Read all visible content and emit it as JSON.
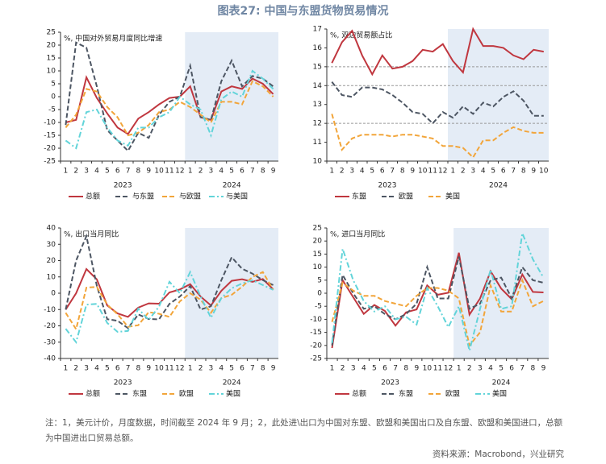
{
  "header": {
    "title": "图表27:  中国与东盟货物贸易情况"
  },
  "chart_data": [
    {
      "type": "line",
      "title": "%, 中国对外贸易月度同比增速",
      "categories": [
        "1",
        "2",
        "3",
        "4",
        "5",
        "6",
        "7",
        "8",
        "9",
        "10",
        "11",
        "12",
        "1",
        "2",
        "3",
        "4",
        "5",
        "6",
        "7",
        "8",
        "9"
      ],
      "year_labels": [
        "2023",
        "2024"
      ],
      "ylim": [
        -25,
        25
      ],
      "yticks": [
        -25,
        -20,
        -15,
        -10,
        -5,
        0,
        5,
        10,
        15,
        20,
        25
      ],
      "series": [
        {
          "name": "总额",
          "color": "#c0373f",
          "style": "solid",
          "values": [
            -10,
            -9,
            7.5,
            -0.5,
            -6.5,
            -12,
            -14.5,
            -8.5,
            -6,
            -3,
            -0.5,
            0,
            4,
            -8,
            -9,
            2,
            4,
            3,
            7,
            5,
            1
          ]
        },
        {
          "name": "与东盟",
          "color": "#4d5663",
          "style": "dashed",
          "values": [
            -11,
            21,
            19,
            4,
            -13,
            -17,
            -21,
            -14,
            -16,
            -7,
            -2,
            0,
            12,
            -8,
            -9,
            6,
            14,
            4,
            8,
            7,
            4
          ]
        },
        {
          "name": "与欧盟",
          "color": "#f2a53a",
          "style": "dashed",
          "values": [
            -12,
            -7,
            3,
            2,
            -4,
            -8,
            -15,
            -14,
            -11,
            -6,
            -5,
            -2,
            -4,
            -7,
            -10,
            -2,
            -2,
            -3,
            6,
            4,
            0
          ]
        },
        {
          "name": "与美国",
          "color": "#62d4d9",
          "style": "dashdot",
          "values": [
            -17,
            -20,
            -6,
            -5,
            -12,
            -17,
            -19,
            -12,
            -12,
            -8,
            -6,
            0,
            -3,
            -5,
            -15,
            -1,
            2,
            0,
            10,
            7,
            3
          ]
        }
      ]
    },
    {
      "type": "line",
      "title": "%, 双边贸易额占比",
      "categories": [
        "1",
        "2",
        "3",
        "4",
        "5",
        "6",
        "7",
        "8",
        "9",
        "10",
        "11",
        "12",
        "1",
        "2",
        "3",
        "4",
        "5",
        "6",
        "7",
        "8",
        "9",
        "10"
      ],
      "year_labels": [
        "2023",
        "2024"
      ],
      "ylim": [
        10,
        17
      ],
      "yticks": [
        10,
        11,
        12,
        13,
        14,
        15,
        16,
        17
      ],
      "ref_lines": [
        15,
        14,
        12
      ],
      "series": [
        {
          "name": "东盟",
          "color": "#c0373f",
          "style": "solid",
          "values": [
            15.2,
            16.3,
            16.9,
            15.6,
            14.6,
            15.6,
            14.9,
            15.0,
            15.3,
            15.9,
            15.8,
            16.2,
            15.3,
            14.7,
            17.0,
            16.1,
            16.1,
            16.0,
            15.6,
            15.4,
            15.9,
            15.8
          ]
        },
        {
          "name": "欧盟",
          "color": "#4d5663",
          "style": "dashed",
          "values": [
            14.2,
            13.5,
            13.4,
            13.9,
            13.9,
            13.8,
            13.5,
            13.1,
            12.6,
            12.5,
            12.0,
            12.6,
            12.3,
            12.9,
            12.5,
            13.1,
            12.9,
            13.4,
            13.7,
            13.2,
            12.4,
            12.4
          ]
        },
        {
          "name": "美国",
          "color": "#f2a53a",
          "style": "dashed",
          "values": [
            12.5,
            10.6,
            11.2,
            11.4,
            11.4,
            11.4,
            11.3,
            11.4,
            11.4,
            11.3,
            11.2,
            10.8,
            10.8,
            10.7,
            10.2,
            11.1,
            11.1,
            11.5,
            11.8,
            11.6,
            11.5,
            11.5
          ]
        }
      ]
    },
    {
      "type": "line",
      "title": "%, 出口当月同比",
      "categories": [
        "1",
        "2",
        "3",
        "4",
        "5",
        "6",
        "7",
        "8",
        "9",
        "10",
        "11",
        "12",
        "1",
        "2",
        "3",
        "4",
        "5",
        "6",
        "7",
        "8",
        "9"
      ],
      "year_labels": [
        "2023",
        "2024"
      ],
      "ylim": [
        -40,
        40
      ],
      "yticks": [
        -40,
        -30,
        -20,
        -10,
        0,
        10,
        20,
        30,
        40
      ],
      "series": [
        {
          "name": "总额",
          "color": "#c0373f",
          "style": "solid",
          "values": [
            -10,
            0,
            14.8,
            8.5,
            -7.5,
            -12.4,
            -14.5,
            -8.8,
            -6.2,
            -6.4,
            0.5,
            2.3,
            5.6,
            -2,
            -7.5,
            1.5,
            7.6,
            8.6,
            7,
            8.7,
            2.4
          ]
        },
        {
          "name": "东盟",
          "color": "#4d5663",
          "style": "dashed",
          "values": [
            -10,
            20,
            35,
            4.5,
            -15.9,
            -16.9,
            -21.4,
            -13,
            -15.8,
            -16,
            -6.5,
            -2,
            4.4,
            -10,
            -8,
            8,
            22,
            15,
            12,
            8,
            5
          ]
        },
        {
          "name": "欧盟",
          "color": "#f2a53a",
          "style": "dashed",
          "values": [
            -12,
            -22,
            3.4,
            3.9,
            -7,
            -12.9,
            -20.6,
            -19.6,
            -11.6,
            -12.6,
            -14.5,
            -5,
            0,
            -4,
            -12,
            -3,
            -1,
            4,
            10,
            13,
            2
          ]
        },
        {
          "name": "美国",
          "color": "#62d4d9",
          "style": "dashdot",
          "values": [
            -21.8,
            -30,
            -7,
            -6.5,
            -18.2,
            -23.7,
            -23.1,
            -9.5,
            -16.4,
            -8.2,
            7,
            0,
            13,
            -2,
            -15,
            -3,
            3,
            6,
            8,
            5,
            2
          ]
        }
      ]
    },
    {
      "type": "line",
      "title": "%, 进口当月同比",
      "categories": [
        "1",
        "2",
        "3",
        "4",
        "5",
        "6",
        "7",
        "8",
        "9",
        "10",
        "11",
        "12",
        "1",
        "2",
        "3",
        "4",
        "5",
        "6",
        "7",
        "8",
        "9"
      ],
      "year_labels": [
        "2023",
        "2024"
      ],
      "ylim": [
        -25,
        25
      ],
      "yticks": [
        -25,
        -20,
        -15,
        -10,
        -5,
        0,
        5,
        10,
        15,
        20,
        25
      ],
      "series": [
        {
          "name": "总额",
          "color": "#c0373f",
          "style": "solid",
          "values": [
            -21,
            5,
            -1.5,
            -7.9,
            -4.5,
            -6.8,
            -12.4,
            -7.3,
            -6.2,
            3,
            -0.6,
            0.2,
            15.5,
            -8.2,
            -2,
            8.4,
            1.8,
            -2.3,
            7.2,
            0.5,
            0.3
          ]
        },
        {
          "name": "东盟",
          "color": "#4d5663",
          "style": "dashed",
          "values": [
            -20,
            7,
            0,
            -6,
            -5,
            -8,
            -10,
            -8,
            -4,
            10,
            -2,
            -2,
            14,
            -6,
            -4,
            5,
            6,
            -2,
            10,
            5,
            4
          ]
        },
        {
          "name": "欧盟",
          "color": "#f2a53a",
          "style": "dashed",
          "values": [
            -11,
            4,
            1,
            -1,
            -1,
            -3,
            -4,
            -5,
            -1,
            2,
            2,
            1,
            -2,
            -20,
            -15,
            3,
            -7,
            -7,
            5,
            -5,
            -3
          ]
        },
        {
          "name": "美国",
          "color": "#62d4d9",
          "style": "dashdot",
          "values": [
            -19,
            17,
            5,
            -3,
            -7,
            -5,
            -10,
            -9,
            -12,
            2,
            -5,
            -13,
            -5,
            -22,
            -6,
            9,
            -6,
            -5,
            23,
            13,
            6
          ]
        }
      ]
    }
  ],
  "footer": {
    "note": "注：1，美元计价，月度数据，时间截至 2024 年 9 月；2，此处进\\出口为中国对东盟、欧盟和美国出口及自东盟、欧盟和美国进口，总额为中国进出口贸易总额。",
    "source": "资料来源：Macrobond，兴业研究"
  }
}
